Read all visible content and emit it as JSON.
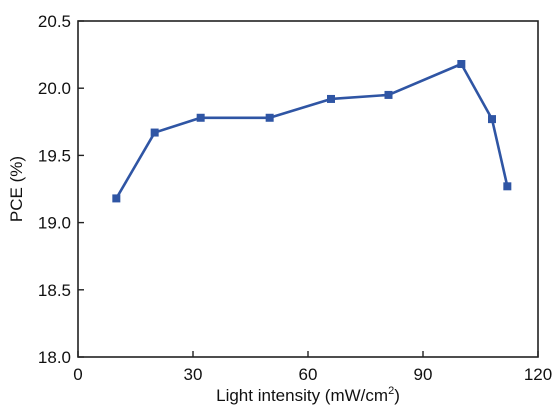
{
  "chart_data": {
    "type": "line",
    "title": "",
    "xlabel": "Light intensity (mW/cm",
    "xlabel_sup": "2",
    "xlabel_end": ")",
    "ylabel": "PCE (%)",
    "xlim": [
      0,
      120
    ],
    "ylim": [
      18.0,
      20.5
    ],
    "xticks": [
      0,
      30,
      60,
      90,
      120
    ],
    "yticks": [
      18.0,
      18.5,
      19.0,
      19.5,
      20.0,
      20.5
    ],
    "xtick_labels": [
      "0",
      "30",
      "60",
      "90",
      "120"
    ],
    "ytick_labels": [
      "18.0",
      "18.5",
      "19.0",
      "19.5",
      "20.0",
      "20.5"
    ],
    "grid": false,
    "series": [
      {
        "marker": "square",
        "color": "#2f55a4",
        "x": [
          10,
          20,
          32,
          50,
          66,
          81,
          100,
          108,
          112
        ],
        "y": [
          19.18,
          19.67,
          19.78,
          19.78,
          19.92,
          19.95,
          20.18,
          19.77,
          19.27
        ]
      }
    ]
  }
}
